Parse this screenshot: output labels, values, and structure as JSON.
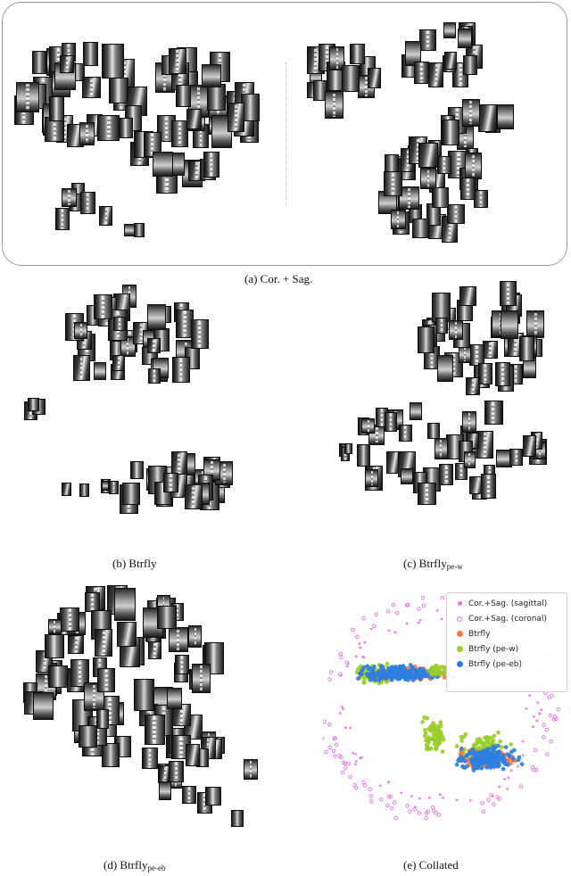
{
  "captions": {
    "a": "(a) Cor. + Sag.",
    "b": "(b) Btrfly",
    "c_prefix": "(c) Btrfly",
    "c_sub": "pe-w",
    "d_prefix": "(d) Btrfly",
    "d_sub": "pe-eb",
    "e": "(e) Collated"
  },
  "chart_data": {
    "type": "scatter",
    "title": "",
    "xlabel": "",
    "ylabel": "",
    "grid": false,
    "axes": false,
    "legend_placement": "top-right",
    "series": [
      {
        "name": "Cor.+Sag. (sagittal)",
        "color": "#e774e7",
        "marker": "filled-small"
      },
      {
        "name": "Cor.+Sag. (coronal)",
        "color": "#e774e7",
        "marker": "hollow"
      },
      {
        "name": "Btrfly",
        "color": "#f07b48",
        "marker": "filled"
      },
      {
        "name": "Btrfly (pe-w)",
        "color": "#9acd2a",
        "marker": "filled"
      },
      {
        "name": "Btrfly (pe-eb)",
        "color": "#2c7fe0",
        "marker": "filled"
      }
    ]
  }
}
